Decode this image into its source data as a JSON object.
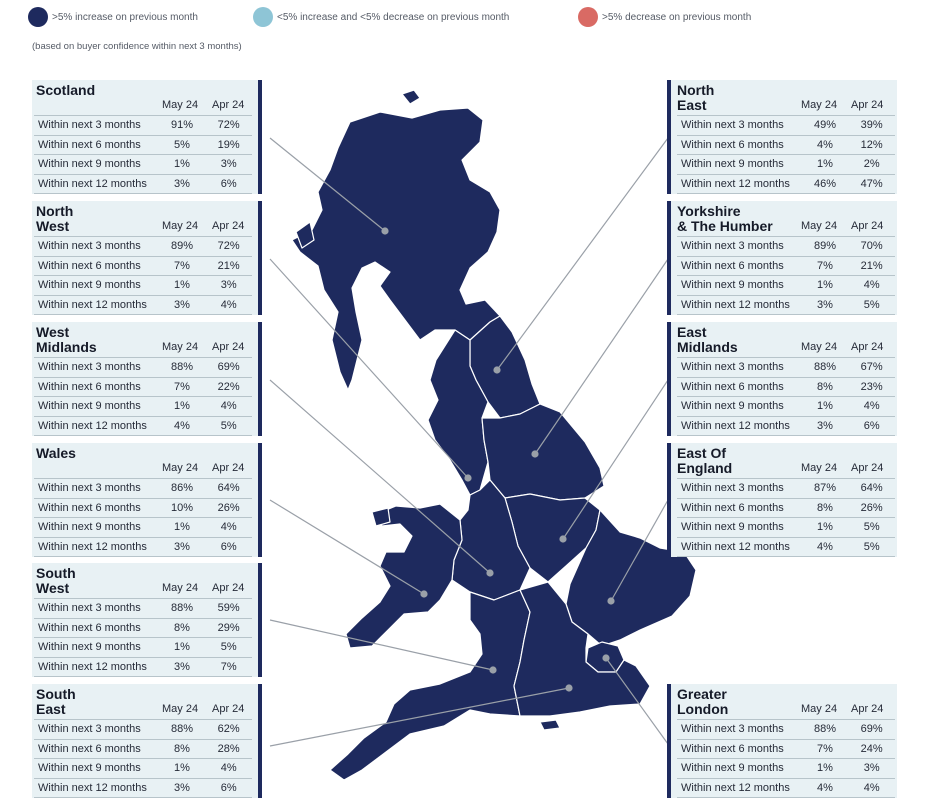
{
  "legend": {
    "items": [
      {
        "label": ">5% increase on previous month",
        "color": "#1e2a5e"
      },
      {
        "label": "<5% increase and <5% decrease on previous month",
        "color": "#8ec5d6"
      },
      {
        "label": ">5% decrease on previous month",
        "color": "#d96a64"
      }
    ],
    "note": "(based on buyer confidence within next 3 months)"
  },
  "columns": {
    "current": "May 24",
    "previous": "Apr 24"
  },
  "row_labels": [
    "Within next 3 months",
    "Within next 6 months",
    "Within next 9 months",
    "Within next 12 months"
  ],
  "map_colors": {
    "region_fill": "#1e2a5e",
    "region_border": "#ffffff",
    "leader_line": "#9aa0a8"
  },
  "regions": {
    "scotland": {
      "name": "Scotland",
      "may": [
        "91%",
        "5%",
        "1%",
        "3%"
      ],
      "apr": [
        "72%",
        "19%",
        "3%",
        "6%"
      ],
      "category": ">5% increase on previous month"
    },
    "north_west": {
      "name": "North\nWest",
      "may": [
        "89%",
        "7%",
        "1%",
        "3%"
      ],
      "apr": [
        "72%",
        "21%",
        "3%",
        "4%"
      ],
      "category": ">5% increase on previous month"
    },
    "west_midlands": {
      "name": "West\nMidlands",
      "may": [
        "88%",
        "7%",
        "1%",
        "4%"
      ],
      "apr": [
        "69%",
        "22%",
        "4%",
        "5%"
      ],
      "category": ">5% increase on previous month"
    },
    "wales": {
      "name": "Wales",
      "may": [
        "86%",
        "10%",
        "1%",
        "3%"
      ],
      "apr": [
        "64%",
        "26%",
        "4%",
        "6%"
      ],
      "category": ">5% increase on previous month"
    },
    "south_west": {
      "name": "South\nWest",
      "may": [
        "88%",
        "8%",
        "1%",
        "3%"
      ],
      "apr": [
        "59%",
        "29%",
        "5%",
        "7%"
      ],
      "category": ">5% increase on previous month"
    },
    "south_east": {
      "name": "South\nEast",
      "may": [
        "88%",
        "8%",
        "1%",
        "3%"
      ],
      "apr": [
        "62%",
        "28%",
        "4%",
        "6%"
      ],
      "category": ">5% increase on previous month"
    },
    "north_east": {
      "name": "North\nEast",
      "may": [
        "49%",
        "4%",
        "1%",
        "46%"
      ],
      "apr": [
        "39%",
        "12%",
        "2%",
        "47%"
      ],
      "category": ">5% increase on previous month"
    },
    "yorkshire": {
      "name": "Yorkshire\n& The Humber",
      "may": [
        "89%",
        "7%",
        "1%",
        "3%"
      ],
      "apr": [
        "70%",
        "21%",
        "4%",
        "5%"
      ],
      "category": ">5% increase on previous month"
    },
    "east_midlands": {
      "name": "East\nMidlands",
      "may": [
        "88%",
        "8%",
        "1%",
        "3%"
      ],
      "apr": [
        "67%",
        "23%",
        "4%",
        "6%"
      ],
      "category": ">5% increase on previous month"
    },
    "east_of_england": {
      "name": "East Of\nEngland",
      "may": [
        "87%",
        "8%",
        "1%",
        "4%"
      ],
      "apr": [
        "64%",
        "26%",
        "5%",
        "5%"
      ],
      "category": ">5% increase on previous month"
    },
    "greater_london": {
      "name": "Greater\nLondon",
      "may": [
        "88%",
        "7%",
        "1%",
        "4%"
      ],
      "apr": [
        "69%",
        "24%",
        "3%",
        "4%"
      ],
      "category": ">5% increase on previous month"
    }
  }
}
